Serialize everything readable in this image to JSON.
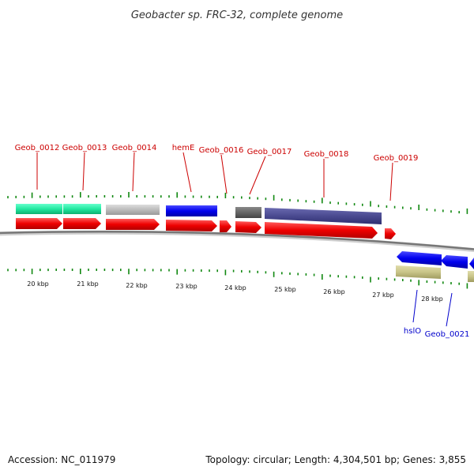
{
  "title": "Geobacter sp. FRC-32, complete genome",
  "footer": {
    "accession": "Accession: NC_011979",
    "summary": "Topology: circular; Length: 4,304,501 bp; Genes: 3,855"
  },
  "scale_labels": [
    "20 kbp",
    "21 kbp",
    "22 kbp",
    "23 kbp",
    "24 kbp",
    "25 kbp",
    "26 kbp",
    "27 kbp",
    "28 kbp"
  ],
  "forward_labels": [
    "Geob_0012",
    "Geob_0013",
    "Geob_0014",
    "hemE",
    "Geob_0016",
    "Geob_0017",
    "Geob_0018",
    "Geob_0019"
  ],
  "reverse_labels": [
    "hslO",
    "Geob_0021"
  ],
  "colors": {
    "forward_cds": "#ee0000",
    "reverse_cds": "#0000ee",
    "backbone": "#888888",
    "ticks": "#118811",
    "forward_label": "#cc0000",
    "reverse_label": "#0000cc"
  }
}
